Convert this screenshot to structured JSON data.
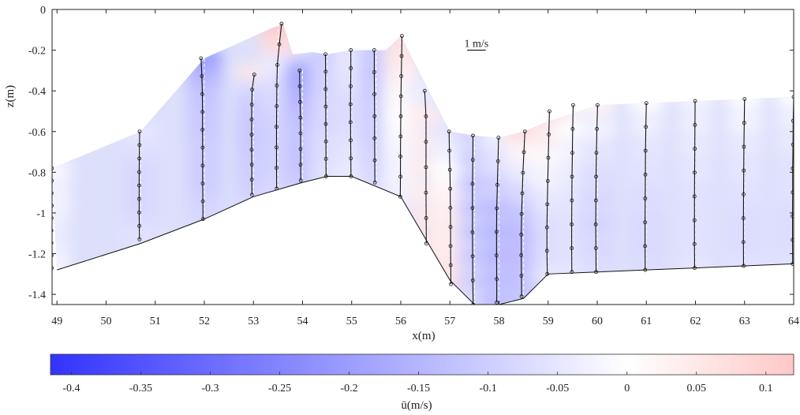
{
  "chart_data": {
    "type": "area",
    "xlabel": "x(m)",
    "ylabel": "z(m)",
    "xlim": [
      48.9,
      64
    ],
    "ylim": [
      -1.45,
      0
    ],
    "xticks": [
      "49",
      "50",
      "51",
      "52",
      "53",
      "54",
      "55",
      "56",
      "57",
      "58",
      "59",
      "60",
      "61",
      "62",
      "63",
      "64"
    ],
    "yticks": [
      "0",
      "-0.2",
      "-0.4",
      "-0.6",
      "-0.8",
      "-1",
      "-1.2",
      "-1.4"
    ],
    "scale_label": "1 m/s",
    "scale_ms": 1,
    "colorbar": {
      "label": "ū(m/s)",
      "range": [
        -0.415,
        0.12
      ],
      "ticks": [
        "-0.4",
        "-0.35",
        "-0.3",
        "-0.25",
        "-0.2",
        "-0.15",
        "-0.1",
        "-0.05",
        "0",
        "0.05",
        "0.1"
      ],
      "colors": [
        "#3333ff",
        "#ffffff",
        "#ffc8c8"
      ]
    },
    "bed_profile": [
      [
        49,
        -1.28
      ],
      [
        50.7,
        -1.15
      ],
      [
        52,
        -1.03
      ],
      [
        53,
        -0.92
      ],
      [
        54,
        -0.85
      ],
      [
        54.5,
        -0.82
      ],
      [
        55,
        -0.82
      ],
      [
        56,
        -0.92
      ],
      [
        57,
        -1.33
      ],
      [
        57.5,
        -1.45
      ],
      [
        58,
        -1.45
      ],
      [
        58.5,
        -1.42
      ],
      [
        59,
        -1.3
      ],
      [
        60,
        -1.29
      ],
      [
        61,
        -1.28
      ],
      [
        62,
        -1.27
      ],
      [
        63,
        -1.26
      ],
      [
        64,
        -1.25
      ]
    ],
    "surface_profile": [
      [
        48.9,
        -0.78
      ],
      [
        50.7,
        -0.6
      ],
      [
        52,
        -0.24
      ],
      [
        53.3,
        -0.1
      ],
      [
        53.6,
        -0.07
      ],
      [
        53.8,
        -0.22
      ],
      [
        54.2,
        -0.21
      ],
      [
        54.5,
        -0.22
      ],
      [
        55,
        -0.2
      ],
      [
        55.7,
        -0.2
      ],
      [
        56,
        -0.13
      ],
      [
        57,
        -0.6
      ],
      [
        57.5,
        -0.62
      ],
      [
        58,
        -0.63
      ],
      [
        58.5,
        -0.6
      ],
      [
        59,
        -0.55
      ],
      [
        60,
        -0.47
      ],
      [
        61,
        -0.46
      ],
      [
        62,
        -0.45
      ],
      [
        63,
        -0.44
      ],
      [
        64,
        -0.43
      ]
    ],
    "profiles": [
      {
        "x": 48.9,
        "z_top": -0.78,
        "z_bot": -1.27,
        "u": [
          -0.01,
          -0.02,
          -0.03,
          -0.02,
          -0.03,
          -0.04,
          -0.04,
          -0.03,
          -0.02
        ]
      },
      {
        "x": 50.7,
        "z_top": -0.6,
        "z_bot": -1.13,
        "u": [
          -0.05,
          -0.06,
          -0.07,
          -0.08,
          -0.08,
          -0.08,
          -0.08,
          -0.07,
          -0.06
        ]
      },
      {
        "x": 52,
        "z_top": -0.24,
        "z_bot": -1.03,
        "u": [
          -0.2,
          -0.15,
          -0.12,
          -0.11,
          -0.11,
          -0.1,
          -0.1,
          -0.1,
          -0.09,
          -0.08
        ]
      },
      {
        "x": 53,
        "z_top": -0.32,
        "z_bot": -0.91,
        "u": [
          0.05,
          -0.08,
          -0.1,
          -0.11,
          -0.11,
          -0.11,
          -0.1,
          -0.1,
          -0.09
        ]
      },
      {
        "x": 53.5,
        "z_top": -0.07,
        "z_bot": -0.88,
        "u": [
          0.22,
          0.08,
          -0.04,
          -0.07,
          -0.08,
          -0.09,
          -0.09,
          -0.09,
          -0.08
        ]
      },
      {
        "x": 54,
        "z_top": -0.3,
        "z_bot": -0.84,
        "u": [
          -0.18,
          -0.17,
          -0.15,
          -0.13,
          -0.12,
          -0.12,
          -0.12,
          -0.11
        ]
      },
      {
        "x": 54.5,
        "z_top": -0.22,
        "z_bot": -0.82,
        "u": [
          -0.1,
          -0.09,
          -0.09,
          -0.08,
          -0.08,
          -0.07,
          -0.07,
          -0.06
        ]
      },
      {
        "x": 55,
        "z_top": -0.2,
        "z_bot": -0.82,
        "u": [
          -0.05,
          -0.05,
          -0.06,
          -0.07,
          -0.07,
          -0.06,
          -0.05,
          -0.04
        ]
      },
      {
        "x": 55.5,
        "z_top": -0.2,
        "z_bot": -0.85,
        "u": [
          -0.12,
          -0.12,
          -0.11,
          -0.1,
          -0.1,
          -0.09,
          -0.08
        ]
      },
      {
        "x": 56,
        "z_top": -0.13,
        "z_bot": -0.92,
        "u": [
          0.07,
          0.05,
          0.03,
          0.01,
          0.0,
          -0.01,
          -0.02,
          -0.02,
          -0.03
        ]
      },
      {
        "x": 56.5,
        "z_top": -0.4,
        "z_bot": -1.15,
        "u": [
          -0.04,
          0.04,
          0.04,
          0.04,
          0.04,
          0.05,
          0.06
        ]
      },
      {
        "x": 57,
        "z_top": -0.6,
        "z_bot": -1.35,
        "u": [
          -0.05,
          -0.03,
          0.0,
          0.02,
          0.03,
          0.04,
          0.04,
          0.05,
          0.06
        ]
      },
      {
        "x": 57.5,
        "z_top": -0.62,
        "z_bot": -1.45,
        "u": [
          -0.09,
          -0.1,
          -0.12,
          -0.12,
          -0.12,
          -0.11,
          -0.1,
          -0.08
        ]
      },
      {
        "x": 58,
        "z_top": -0.63,
        "z_bot": -1.44,
        "u": [
          -0.03,
          -0.06,
          -0.1,
          -0.14,
          -0.15,
          -0.15,
          -0.14,
          -0.14
        ]
      },
      {
        "x": 58.5,
        "z_top": -0.6,
        "z_bot": -1.41,
        "u": [
          0.08,
          0.02,
          -0.04,
          -0.08,
          -0.12,
          -0.14,
          -0.14,
          -0.13,
          -0.12
        ]
      },
      {
        "x": 59,
        "z_top": -0.5,
        "z_bot": -1.3,
        "u": [
          0.08,
          0.04,
          0.01,
          -0.02,
          -0.05,
          -0.07,
          -0.07,
          -0.05
        ]
      },
      {
        "x": 59.5,
        "z_top": -0.47,
        "z_bot": -1.29,
        "u": [
          0.03,
          0.0,
          -0.02,
          -0.04,
          -0.05,
          -0.06,
          -0.06,
          -0.05
        ]
      },
      {
        "x": 60,
        "z_top": -0.47,
        "z_bot": -1.29,
        "u": [
          0.02,
          -0.02,
          -0.05,
          -0.07,
          -0.08,
          -0.09,
          -0.08,
          -0.07
        ]
      },
      {
        "x": 61,
        "z_top": -0.46,
        "z_bot": -1.28,
        "u": [
          0.0,
          -0.03,
          -0.05,
          -0.06,
          -0.07,
          -0.08,
          -0.08,
          -0.07
        ]
      },
      {
        "x": 62,
        "z_top": -0.45,
        "z_bot": -1.27,
        "u": [
          -0.02,
          -0.03,
          -0.04,
          -0.05,
          -0.06,
          -0.06,
          -0.06,
          -0.05
        ]
      },
      {
        "x": 63,
        "z_top": -0.44,
        "z_bot": -1.26,
        "u": [
          0.0,
          -0.02,
          -0.04,
          -0.05,
          -0.06,
          -0.07,
          -0.07,
          -0.06
        ]
      },
      {
        "x": 64,
        "z_top": -0.43,
        "z_bot": -1.25,
        "u": [
          0.0,
          -0.03,
          -0.04,
          -0.06,
          -0.06,
          -0.07,
          -0.07,
          -0.06
        ]
      }
    ]
  }
}
